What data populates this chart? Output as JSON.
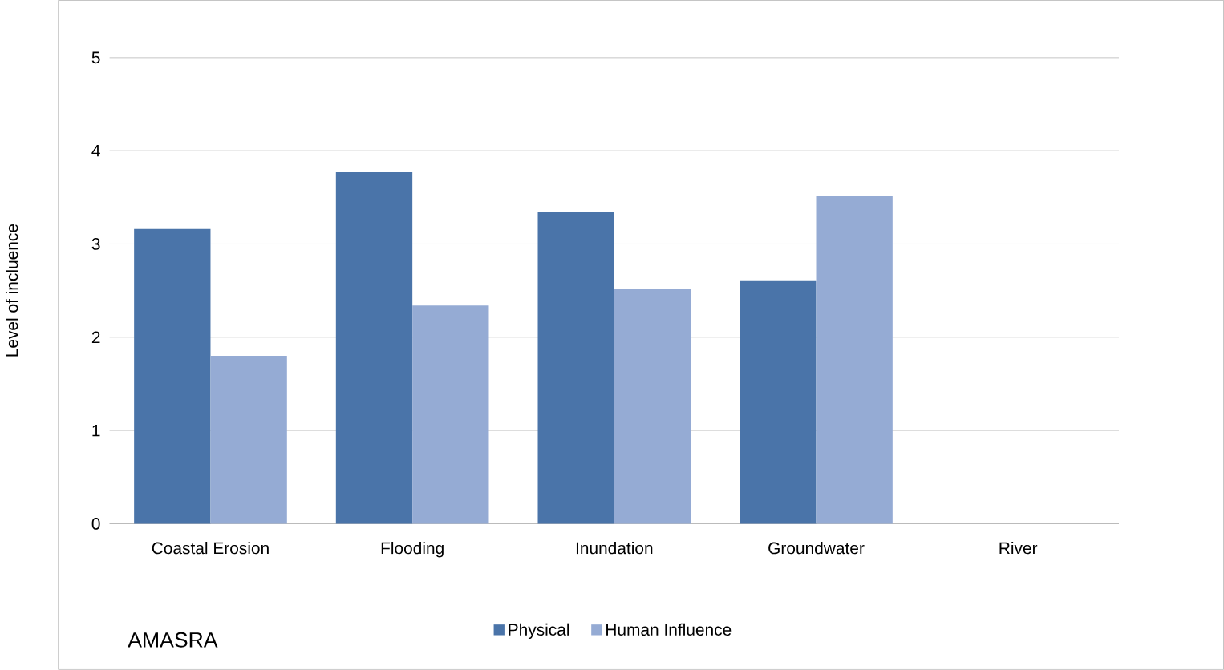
{
  "chart_data": {
    "type": "bar",
    "ylabel": "Level of incluence",
    "categories": [
      "Coastal Erosion",
      "Flooding",
      "Inundation",
      "Groundwater",
      "River"
    ],
    "series": [
      {
        "name": "Physical",
        "color": "#4a74a9",
        "values": [
          3.16,
          3.77,
          3.34,
          2.61,
          null
        ]
      },
      {
        "name": "Human Influence",
        "color": "#95abd4",
        "values": [
          1.8,
          2.34,
          2.52,
          3.52,
          null
        ]
      }
    ],
    "ylim": [
      0,
      5
    ],
    "yticks": [
      0,
      1,
      2,
      3,
      4,
      5
    ],
    "grid": "y",
    "legend": "bottom",
    "annotations": [
      "AMASRA"
    ]
  }
}
